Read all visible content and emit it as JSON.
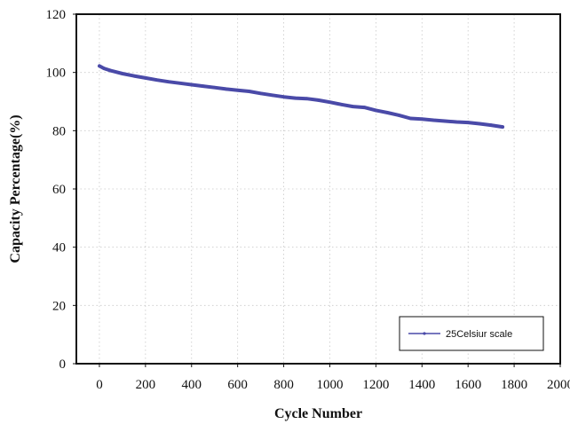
{
  "chart_data": {
    "type": "line",
    "title": "",
    "xlabel": "Cycle Number",
    "ylabel": "Capacity Percentage(%)",
    "xlim": [
      -100,
      2000
    ],
    "ylim": [
      0,
      120
    ],
    "x_ticks": [
      0,
      200,
      400,
      600,
      800,
      1000,
      1200,
      1400,
      1600,
      1800,
      2000
    ],
    "y_ticks": [
      0,
      20,
      40,
      60,
      80,
      100,
      120
    ],
    "grid": true,
    "legend_position": "bottom-right",
    "series": [
      {
        "name": "25Celsiur scale",
        "color": "#4a4aa8",
        "x": [
          0,
          20,
          50,
          100,
          150,
          200,
          250,
          300,
          350,
          400,
          450,
          500,
          550,
          600,
          650,
          700,
          750,
          800,
          850,
          900,
          950,
          1000,
          1050,
          1100,
          1150,
          1200,
          1250,
          1300,
          1350,
          1400,
          1450,
          1500,
          1550,
          1600,
          1650,
          1700,
          1750
        ],
        "y": [
          102.2,
          101.4,
          100.6,
          99.6,
          98.8,
          98.1,
          97.4,
          96.8,
          96.3,
          95.8,
          95.3,
          94.8,
          94.3,
          93.9,
          93.5,
          92.8,
          92.2,
          91.6,
          91.2,
          91.0,
          90.5,
          89.8,
          89.0,
          88.3,
          88.0,
          87.0,
          86.2,
          85.3,
          84.2,
          84.0,
          83.6,
          83.3,
          83.0,
          82.8,
          82.4,
          81.9,
          81.3
        ]
      }
    ]
  }
}
